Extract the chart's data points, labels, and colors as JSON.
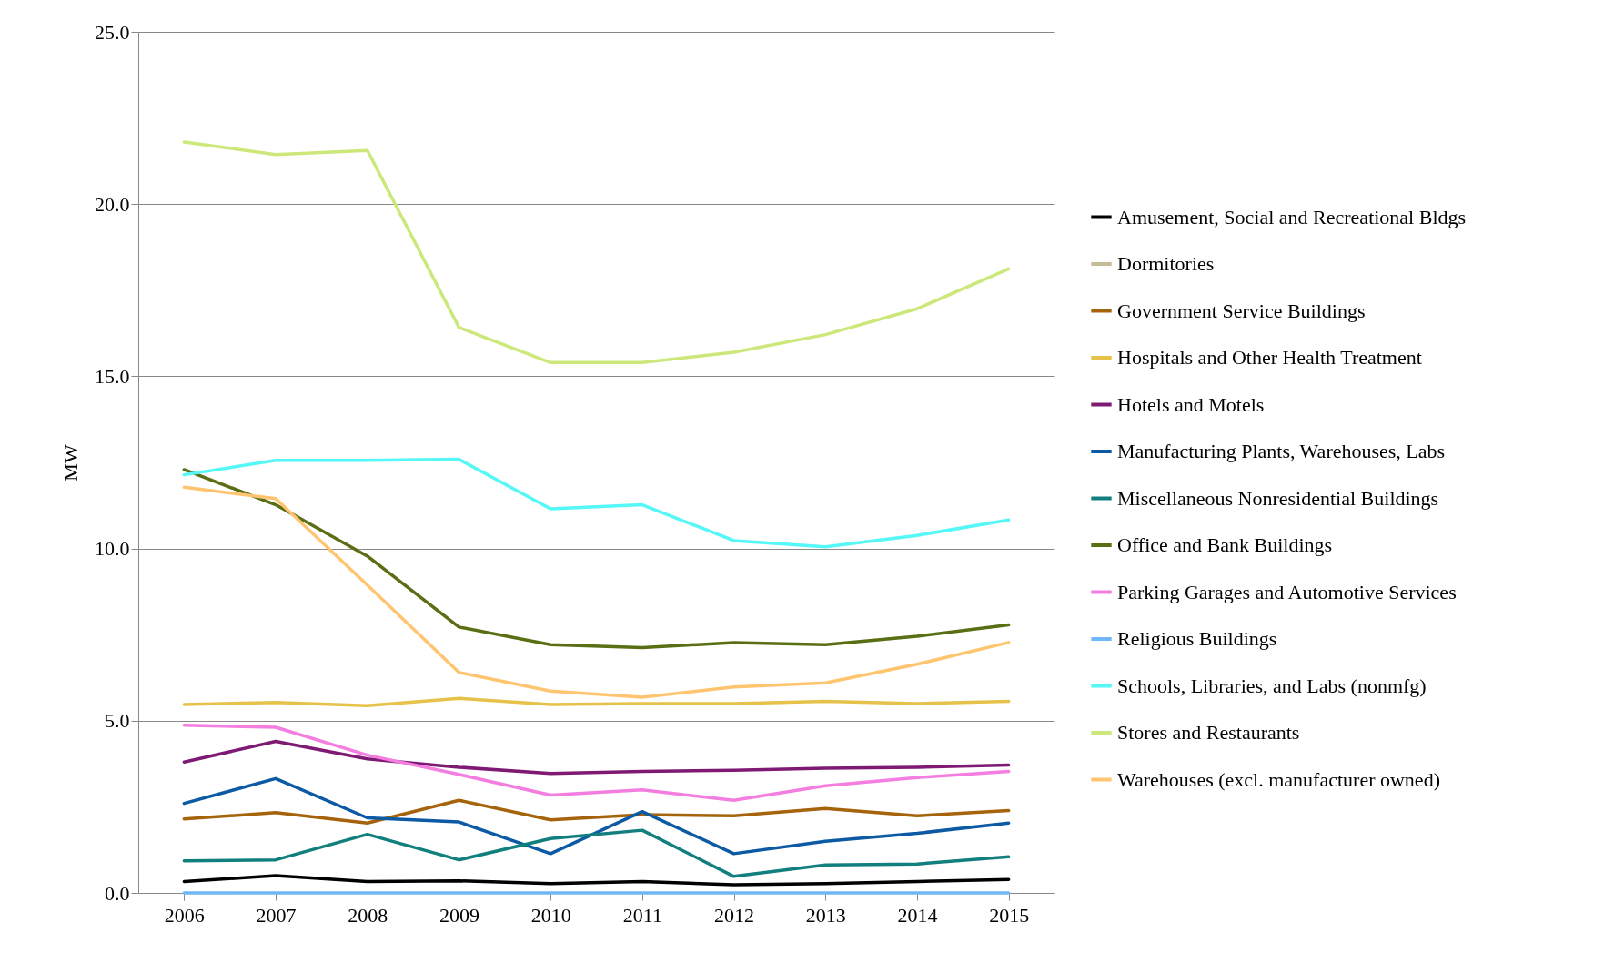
{
  "chart_data": {
    "type": "line",
    "ylabel": "MW",
    "categories": [
      "2006",
      "2007",
      "2008",
      "2009",
      "2010",
      "2011",
      "2012",
      "2013",
      "2014",
      "2015"
    ],
    "ylim": [
      0,
      25
    ],
    "yticks": [
      {
        "value": 0,
        "label": "0.0"
      },
      {
        "value": 5,
        "label": "5.0"
      },
      {
        "value": 10,
        "label": "10.0"
      },
      {
        "value": 15,
        "label": "15.0"
      },
      {
        "value": 20,
        "label": "20.0"
      },
      {
        "value": 25,
        "label": "25.0"
      }
    ],
    "grid": "y",
    "legend": "right",
    "marker": "none",
    "line_style": "solid",
    "series": [
      {
        "name": "Amusement, Social and Recreational Bldgs",
        "color": "#000000",
        "values": [
          0.33,
          0.5,
          0.33,
          0.35,
          0.27,
          0.33,
          0.24,
          0.27,
          0.33,
          0.39
        ]
      },
      {
        "name": "Dormitories",
        "color": "#c4bd97",
        "values": [
          null,
          null,
          null,
          null,
          null,
          null,
          null,
          null,
          null,
          null
        ]
      },
      {
        "name": "Government Service Buildings",
        "color": "#a5640c",
        "values": [
          2.15,
          2.33,
          2.03,
          2.69,
          2.12,
          2.27,
          2.24,
          2.45,
          2.24,
          2.39
        ]
      },
      {
        "name": "Hospitals and Other Health Treatment",
        "color": "#e6c24a",
        "values": [
          5.47,
          5.53,
          5.44,
          5.65,
          5.47,
          5.5,
          5.5,
          5.56,
          5.5,
          5.56
        ]
      },
      {
        "name": "Hotels and Motels",
        "color": "#7f1a74",
        "values": [
          3.8,
          4.4,
          3.89,
          3.65,
          3.47,
          3.53,
          3.56,
          3.62,
          3.65,
          3.71
        ]
      },
      {
        "name": "Manufacturing Plants, Warehouses, Labs",
        "color": "#0b5aa3",
        "values": [
          2.6,
          3.32,
          2.18,
          2.06,
          1.14,
          2.36,
          1.14,
          1.5,
          1.73,
          2.03
        ]
      },
      {
        "name": "Miscellaneous Nonresidential Buildings",
        "color": "#127f7f",
        "values": [
          0.93,
          0.96,
          1.7,
          0.96,
          1.58,
          1.82,
          0.48,
          0.81,
          0.84,
          1.05
        ]
      },
      {
        "name": "Office and Bank Buildings",
        "color": "#5a6e14",
        "values": [
          12.29,
          11.27,
          9.78,
          7.72,
          7.21,
          7.12,
          7.27,
          7.21,
          7.45,
          7.78
        ]
      },
      {
        "name": "Parking Garages and Automotive Services",
        "color": "#f47ee0",
        "values": [
          4.87,
          4.81,
          4.0,
          3.44,
          2.84,
          2.99,
          2.69,
          3.11,
          3.35,
          3.53
        ]
      },
      {
        "name": "Religious Buildings",
        "color": "#6fb8f5",
        "values": [
          0,
          0,
          0,
          0,
          0,
          0,
          0,
          0,
          0,
          0
        ]
      },
      {
        "name": "Schools, Libraries, and Labs (nonmfg)",
        "color": "#55f7f7",
        "values": [
          12.14,
          12.56,
          12.56,
          12.59,
          11.15,
          11.27,
          10.23,
          10.05,
          10.38,
          10.83
        ]
      },
      {
        "name": "Stores and Restaurants",
        "color": "#cce87a",
        "values": [
          21.8,
          21.44,
          21.56,
          16.42,
          15.4,
          15.4,
          15.7,
          16.21,
          16.96,
          18.12
        ]
      },
      {
        "name": "Warehouses (excl. manufacturer owned)",
        "color": "#ffc46f",
        "values": [
          11.78,
          11.45,
          8.94,
          6.4,
          5.86,
          5.68,
          5.98,
          6.1,
          6.64,
          7.27
        ]
      }
    ]
  }
}
